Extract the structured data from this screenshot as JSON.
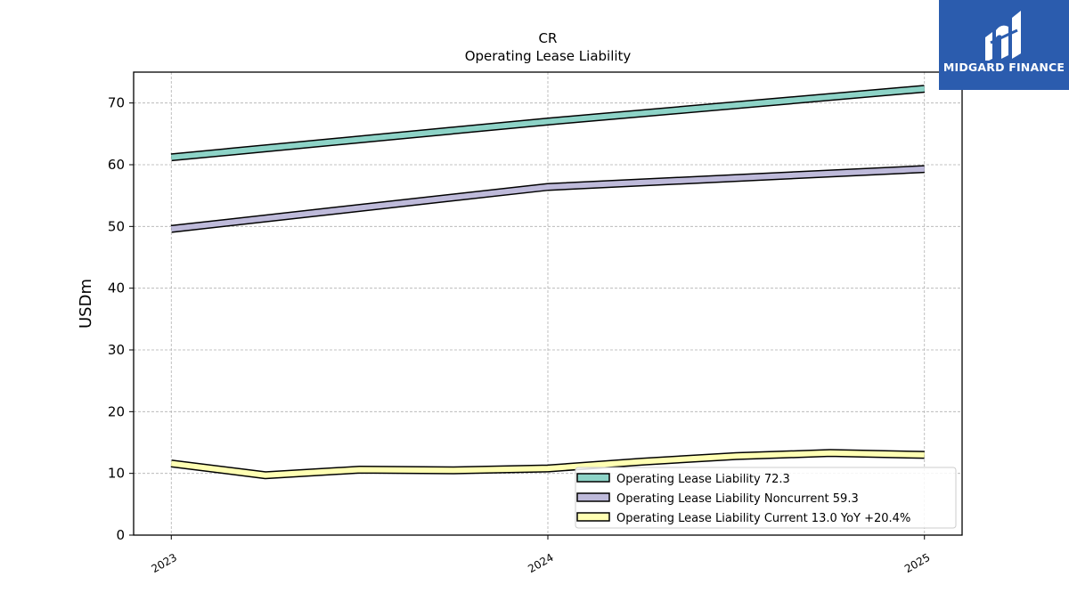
{
  "brand": {
    "name": "MIDGARD FINANCE",
    "color": "#2b5cae",
    "icon": "midgard-logo-icon"
  },
  "chart_data": {
    "type": "line",
    "title": "CR",
    "subtitle": "Operating Lease Liability",
    "xlabel": "",
    "ylabel": "USDm",
    "x_ticks": [
      "2023",
      "2024",
      "2025"
    ],
    "xlim": [
      2022.9,
      2025.1
    ],
    "ylim": [
      0,
      75
    ],
    "y_ticks": [
      0,
      10,
      20,
      30,
      40,
      50,
      60,
      70
    ],
    "grid": true,
    "legend_position": "lower-right",
    "series": [
      {
        "name": "Operating Lease Liability",
        "legend_label": "Operating Lease Liability  72.3",
        "color": "#8dd3c7",
        "x": [
          2023.0,
          2024.0,
          2025.0
        ],
        "y": [
          61.2,
          67.0,
          72.3
        ]
      },
      {
        "name": "Operating Lease Liability Noncurrent",
        "legend_label": "Operating Lease Liability Noncurrent  59.3",
        "color": "#bebada",
        "x": [
          2023.0,
          2024.0,
          2025.0
        ],
        "y": [
          49.6,
          56.4,
          59.3
        ]
      },
      {
        "name": "Operating Lease Liability Current",
        "legend_label": "Operating Lease Liability Current  13.0 YoY +20.4%",
        "color": "#ffffb3",
        "x": [
          2023.0,
          2023.25,
          2023.5,
          2023.75,
          2024.0,
          2024.25,
          2024.5,
          2024.75,
          2025.0
        ],
        "y": [
          11.6,
          9.7,
          10.6,
          10.5,
          10.8,
          11.9,
          12.8,
          13.3,
          13.0
        ]
      }
    ]
  }
}
